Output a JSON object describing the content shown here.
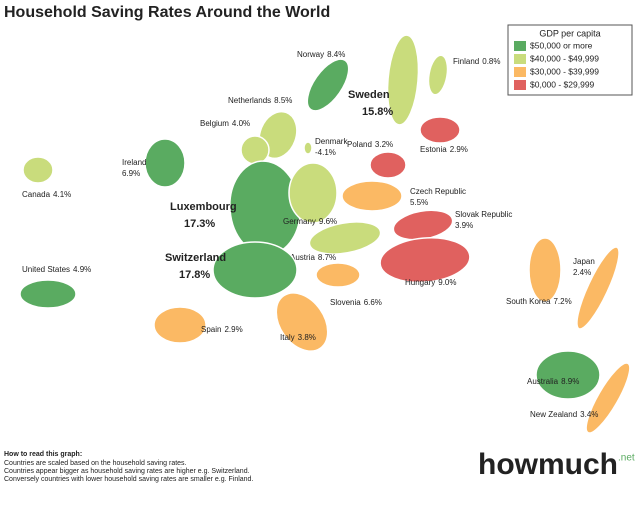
{
  "title": "Household Saving Rates Around the World",
  "legend": {
    "title": "GDP per capita",
    "items": [
      {
        "label": "$50,000 or more",
        "color": "#5aab61"
      },
      {
        "label": "$40,000 - $49,999",
        "color": "#c9dc7c"
      },
      {
        "label": "$30,000 - $39,999",
        "color": "#fbb964"
      },
      {
        "label": "$0,000   - $29,999",
        "color": "#e0615f"
      }
    ]
  },
  "countries": [
    {
      "name": "Norway",
      "rate": "8.4%",
      "group": 0
    },
    {
      "name": "Sweden",
      "rate": "15.8%",
      "group": 1
    },
    {
      "name": "Finland",
      "rate": "0.8%",
      "group": 1
    },
    {
      "name": "Netherlands",
      "rate": "8.5%",
      "group": 1
    },
    {
      "name": "Belgium",
      "rate": "4.0%",
      "group": 1
    },
    {
      "name": "Denmark",
      "rate": "-4.1%",
      "group": 1
    },
    {
      "name": "Poland",
      "rate": "3.2%",
      "group": 3
    },
    {
      "name": "Estonia",
      "rate": "2.9%",
      "group": 3
    },
    {
      "name": "Ireland",
      "rate": "6.9%",
      "group": 0
    },
    {
      "name": "Canada",
      "rate": "4.1%",
      "group": 1
    },
    {
      "name": "Luxembourg",
      "rate": "17.3%",
      "group": 0
    },
    {
      "name": "Germany",
      "rate": "9.6%",
      "group": 1
    },
    {
      "name": "Czech Republic",
      "rate": "5.5%",
      "group": 2
    },
    {
      "name": "Slovak Republic",
      "rate": "3.9%",
      "group": 3
    },
    {
      "name": "Austria",
      "rate": "8.7%",
      "group": 1
    },
    {
      "name": "Switzerland",
      "rate": "17.8%",
      "group": 0
    },
    {
      "name": "United States",
      "rate": "4.9%",
      "group": 0
    },
    {
      "name": "Hungary",
      "rate": "9.0%",
      "group": 3
    },
    {
      "name": "Slovenia",
      "rate": "6.6%",
      "group": 2
    },
    {
      "name": "Spain",
      "rate": "2.9%",
      "group": 2
    },
    {
      "name": "Italy",
      "rate": "3.8%",
      "group": 2
    },
    {
      "name": "South Korea",
      "rate": "7.2%",
      "group": 2
    },
    {
      "name": "Japan",
      "rate": "2.4%",
      "group": 2
    },
    {
      "name": "Australia",
      "rate": "8.9%",
      "group": 0
    },
    {
      "name": "New Zealand",
      "rate": "3.4%",
      "group": 2
    }
  ],
  "notes": {
    "heading": "How to read this graph:",
    "lines": [
      "Countries are scaled based on the household saving rates.",
      "Countries appear bigger as household saving rates are higher e.g. Switzerland.",
      "Conversely countries with lower household saving rates are smaller e.g. Finland."
    ]
  },
  "logo": {
    "name": "howmuch",
    "suffix": ".net"
  }
}
